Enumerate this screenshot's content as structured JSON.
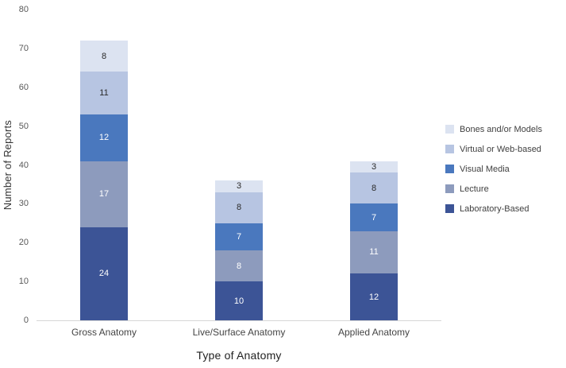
{
  "chart_data": {
    "type": "bar",
    "stacked": true,
    "title": "",
    "xlabel": "Type of Anatomy",
    "ylabel": "Number of Reports",
    "ylim": [
      0,
      80
    ],
    "ytick_step": 10,
    "grid": false,
    "legend_position": "right",
    "categories": [
      "Gross Anatomy",
      "Live/Surface Anatomy",
      "Applied Anatomy"
    ],
    "series": [
      {
        "name": "Laboratory-Based",
        "color": "#3C5496",
        "label_color": "#ffffff",
        "values": [
          24,
          10,
          12
        ]
      },
      {
        "name": "Lecture",
        "color": "#8D9BBD",
        "label_color": "#ffffff",
        "values": [
          17,
          8,
          11
        ]
      },
      {
        "name": "Visual Media",
        "color": "#4A78BE",
        "label_color": "#ffffff",
        "values": [
          12,
          7,
          7
        ]
      },
      {
        "name": "Virtual or Web-based",
        "color": "#B7C5E2",
        "label_color": "#2b2b2b",
        "values": [
          11,
          8,
          8
        ]
      },
      {
        "name": "Bones and/or Models",
        "color": "#DCE3F1",
        "label_color": "#2b2b2b",
        "values": [
          8,
          3,
          3
        ]
      }
    ],
    "legend_order": [
      "Bones and/or Models",
      "Virtual or Web-based",
      "Visual Media",
      "Lecture",
      "Laboratory-Based"
    ],
    "totals": [
      72,
      36,
      41
    ]
  }
}
